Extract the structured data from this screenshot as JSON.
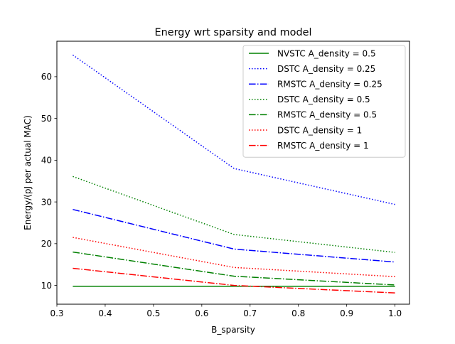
{
  "chart_data": {
    "type": "line",
    "title": "Energy wrt sparsity and model",
    "xlabel": "B_sparsity",
    "ylabel": "Energy/(pJ per actual MAC)",
    "xlim": [
      0.3,
      1.03
    ],
    "ylim": [
      5.5,
      68.5
    ],
    "xticks": [
      0.3,
      0.4,
      0.5,
      0.6,
      0.7,
      0.8,
      0.9,
      1.0
    ],
    "xtick_labels": [
      "0.3",
      "0.4",
      "0.5",
      "0.6",
      "0.7",
      "0.8",
      "0.9",
      "1.0"
    ],
    "yticks": [
      10,
      20,
      30,
      40,
      50,
      60
    ],
    "ytick_labels": [
      "10",
      "20",
      "30",
      "40",
      "50",
      "60"
    ],
    "grid": false,
    "legend_position": "top-right",
    "x": [
      0.333,
      0.667,
      1.0
    ],
    "series": [
      {
        "name": "NVSTC A_density = 0.5",
        "values": [
          9.8,
          9.8,
          9.8
        ],
        "color": "#008000",
        "style": "solid"
      },
      {
        "name": "DSTC A_density = 0.25",
        "values": [
          65.2,
          38.0,
          29.4
        ],
        "color": "#0000ff",
        "style": "dotted"
      },
      {
        "name": "RMSTC A_density = 0.25",
        "values": [
          28.2,
          18.7,
          15.6
        ],
        "color": "#0000ff",
        "style": "dashdot"
      },
      {
        "name": "DSTC A_density = 0.5",
        "values": [
          36.1,
          22.2,
          17.9
        ],
        "color": "#008000",
        "style": "dotted"
      },
      {
        "name": "RMSTC A_density = 0.5",
        "values": [
          18.0,
          12.2,
          10.1
        ],
        "color": "#008000",
        "style": "dashdot"
      },
      {
        "name": "DSTC A_density = 1",
        "values": [
          21.5,
          14.3,
          12.1
        ],
        "color": "#ff0000",
        "style": "dotted"
      },
      {
        "name": "RMSTC A_density = 1",
        "values": [
          14.1,
          10.0,
          8.2
        ],
        "color": "#ff0000",
        "style": "dashdot"
      }
    ]
  }
}
